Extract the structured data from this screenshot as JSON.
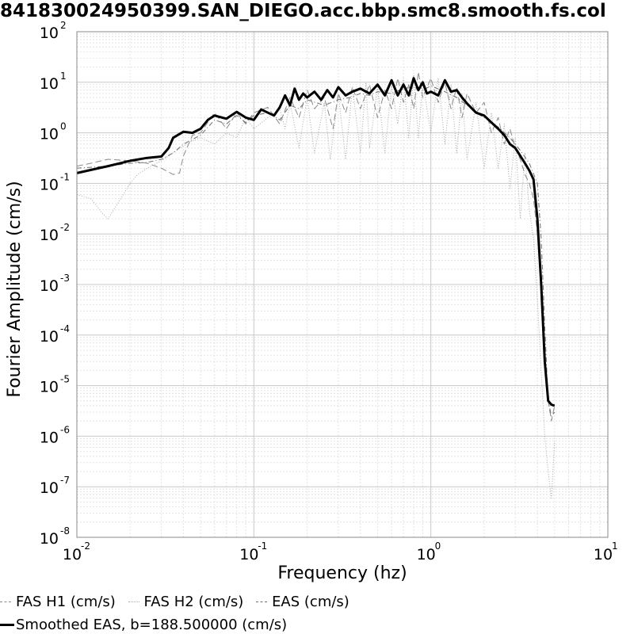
{
  "chart_data": {
    "type": "line",
    "title": "841830024950399.SAN_DIEGO.acc.bbp.smc8.smooth.fs.col",
    "xlabel": "Frequency (hz)",
    "ylabel": "Fourier Amplitude (cm/s)",
    "xscale": "log",
    "yscale": "log",
    "xlim": [
      0.01,
      10
    ],
    "ylim": [
      1e-08,
      100
    ],
    "grid": true,
    "legend_position": "bottom",
    "x_ticks": [
      {
        "base": "10",
        "exp": "-2",
        "value": 0.01
      },
      {
        "base": "10",
        "exp": "-1",
        "value": 0.1
      },
      {
        "base": "10",
        "exp": "0",
        "value": 1
      },
      {
        "base": "10",
        "exp": "1",
        "value": 10
      }
    ],
    "y_ticks": [
      {
        "base": "10",
        "exp": "2",
        "value": 100
      },
      {
        "base": "10",
        "exp": "1",
        "value": 10
      },
      {
        "base": "10",
        "exp": "0",
        "value": 1
      },
      {
        "base": "10",
        "exp": "-1",
        "value": 0.1
      },
      {
        "base": "10",
        "exp": "-2",
        "value": 0.01
      },
      {
        "base": "10",
        "exp": "-3",
        "value": 0.001
      },
      {
        "base": "10",
        "exp": "-4",
        "value": 0.0001
      },
      {
        "base": "10",
        "exp": "-5",
        "value": 1e-05
      },
      {
        "base": "10",
        "exp": "-6",
        "value": 1e-06
      },
      {
        "base": "10",
        "exp": "-7",
        "value": 1e-07
      },
      {
        "base": "10",
        "exp": "-8",
        "value": 1e-08
      }
    ],
    "series": [
      {
        "name": "FAS H1 (cm/s)",
        "color": "#8a8a8a",
        "dash": "8,4",
        "width": 1,
        "x": [
          0.01,
          0.012,
          0.015,
          0.02,
          0.025,
          0.03,
          0.035,
          0.038,
          0.04,
          0.045,
          0.05,
          0.06,
          0.07,
          0.08,
          0.09,
          0.1,
          0.12,
          0.14,
          0.16,
          0.18,
          0.2,
          0.22,
          0.25,
          0.28,
          0.3,
          0.33,
          0.36,
          0.4,
          0.45,
          0.5,
          0.55,
          0.6,
          0.65,
          0.7,
          0.75,
          0.8,
          0.85,
          0.9,
          1.0,
          1.1,
          1.2,
          1.3,
          1.4,
          1.5,
          1.6,
          1.8,
          2.0,
          2.2,
          2.4,
          2.6,
          2.8,
          3.0,
          3.2,
          3.4,
          3.6,
          3.8,
          4.0,
          4.2,
          4.4,
          4.6,
          4.8,
          5.0
        ],
        "y": [
          0.22,
          0.25,
          0.3,
          0.28,
          0.25,
          0.2,
          0.15,
          0.16,
          0.35,
          0.9,
          1.0,
          2.5,
          1.2,
          2.5,
          1.5,
          2.5,
          3.2,
          1.5,
          5.0,
          2.0,
          7.0,
          3.0,
          5.0,
          1.2,
          6.0,
          2.5,
          8.0,
          3.0,
          9.0,
          2.0,
          7.0,
          3.0,
          12.0,
          4.0,
          9.0,
          3.0,
          16.0,
          5.0,
          12.0,
          4.0,
          10.0,
          3.0,
          8.0,
          2.0,
          6.0,
          2.5,
          4.0,
          1.0,
          2.0,
          0.6,
          1.2,
          0.5,
          0.3,
          0.15,
          0.1,
          0.05,
          0.01,
          0.001,
          5e-05,
          5e-06,
          2e-06,
          4e-06
        ]
      },
      {
        "name": "FAS H2 (cm/s)",
        "color": "#a8a8a8",
        "dash": "1,2",
        "width": 1,
        "x": [
          0.01,
          0.012,
          0.014,
          0.015,
          0.017,
          0.02,
          0.022,
          0.025,
          0.03,
          0.035,
          0.04,
          0.045,
          0.05,
          0.06,
          0.07,
          0.08,
          0.09,
          0.1,
          0.12,
          0.14,
          0.15,
          0.16,
          0.18,
          0.2,
          0.22,
          0.25,
          0.27,
          0.3,
          0.33,
          0.36,
          0.4,
          0.43,
          0.45,
          0.5,
          0.55,
          0.6,
          0.65,
          0.7,
          0.75,
          0.8,
          0.85,
          0.9,
          1.0,
          1.1,
          1.2,
          1.3,
          1.4,
          1.5,
          1.6,
          1.8,
          2.0,
          2.2,
          2.4,
          2.6,
          2.8,
          3.0,
          3.2,
          3.4,
          3.6,
          3.8,
          4.0,
          4.2,
          4.4,
          4.6,
          4.8,
          5.0
        ],
        "y": [
          0.06,
          0.05,
          0.025,
          0.02,
          0.04,
          0.1,
          0.15,
          0.2,
          0.28,
          0.4,
          0.55,
          0.7,
          0.8,
          0.6,
          1.0,
          0.8,
          2.0,
          1.2,
          2.0,
          3.0,
          1.2,
          4.0,
          0.5,
          5.0,
          0.4,
          4.0,
          0.3,
          6.0,
          0.3,
          8.0,
          0.4,
          10.0,
          0.5,
          8.0,
          0.4,
          9.0,
          1.5,
          12.0,
          0.8,
          14.0,
          0.8,
          10.0,
          1.0,
          12.0,
          0.6,
          9.0,
          0.4,
          6.0,
          0.3,
          4.0,
          0.2,
          2.5,
          0.2,
          1.5,
          0.08,
          0.8,
          0.02,
          0.4,
          0.03,
          0.008,
          0.0005,
          2e-05,
          1e-06,
          2e-07,
          6e-08,
          8e-07
        ]
      },
      {
        "name": "EAS (cm/s)",
        "color": "#6e6e6e",
        "dash": "6,3,1,3",
        "width": 1,
        "x": [
          0.01,
          0.015,
          0.02,
          0.025,
          0.03,
          0.035,
          0.04,
          0.05,
          0.06,
          0.07,
          0.08,
          0.09,
          0.1,
          0.12,
          0.14,
          0.16,
          0.18,
          0.2,
          0.25,
          0.3,
          0.35,
          0.4,
          0.45,
          0.5,
          0.6,
          0.7,
          0.8,
          0.9,
          1.0,
          1.2,
          1.4,
          1.6,
          1.8,
          2.0,
          2.4,
          2.8,
          3.2,
          3.6,
          4.0,
          4.2,
          4.4,
          4.6,
          4.8,
          5.0
        ],
        "y": [
          0.2,
          0.22,
          0.25,
          0.26,
          0.3,
          0.4,
          0.6,
          0.9,
          1.8,
          1.5,
          2.2,
          1.6,
          2.2,
          2.5,
          1.8,
          3.5,
          3.0,
          4.5,
          3.5,
          4.5,
          5.0,
          6.0,
          5.5,
          6.5,
          6.0,
          7.5,
          8.0,
          7.0,
          8.5,
          6.5,
          5.0,
          3.5,
          2.5,
          2.0,
          1.3,
          0.8,
          0.45,
          0.25,
          0.1,
          0.008,
          0.00015,
          5e-06,
          2.5e-06,
          3e-06
        ]
      },
      {
        "name": "Smoothed EAS, b=188.500000 (cm/s)",
        "color": "#000000",
        "dash": "",
        "width": 3,
        "x": [
          0.01,
          0.015,
          0.02,
          0.025,
          0.03,
          0.033,
          0.035,
          0.04,
          0.045,
          0.05,
          0.055,
          0.06,
          0.07,
          0.08,
          0.09,
          0.1,
          0.11,
          0.12,
          0.13,
          0.14,
          0.15,
          0.16,
          0.17,
          0.18,
          0.19,
          0.2,
          0.22,
          0.24,
          0.26,
          0.28,
          0.3,
          0.33,
          0.36,
          0.4,
          0.45,
          0.5,
          0.55,
          0.6,
          0.65,
          0.7,
          0.75,
          0.8,
          0.85,
          0.9,
          0.95,
          1.0,
          1.1,
          1.2,
          1.3,
          1.4,
          1.5,
          1.6,
          1.8,
          2.0,
          2.2,
          2.4,
          2.6,
          2.8,
          3.0,
          3.2,
          3.4,
          3.6,
          3.8,
          4.0,
          4.2,
          4.4,
          4.6,
          4.8,
          5.0
        ],
        "y": [
          0.16,
          0.22,
          0.28,
          0.32,
          0.34,
          0.5,
          0.8,
          1.05,
          1.0,
          1.2,
          1.8,
          2.2,
          1.9,
          2.6,
          2.0,
          1.8,
          2.9,
          2.5,
          2.2,
          3.2,
          5.5,
          3.5,
          7.5,
          4.5,
          6.0,
          5.0,
          6.5,
          4.5,
          7.0,
          5.0,
          8.0,
          5.5,
          6.5,
          7.5,
          6.0,
          9.0,
          5.5,
          11.0,
          5.5,
          9.0,
          5.5,
          12.0,
          7.0,
          10.0,
          6.0,
          6.5,
          5.5,
          11.0,
          6.5,
          7.0,
          5.0,
          3.8,
          2.5,
          2.2,
          1.6,
          1.2,
          0.9,
          0.6,
          0.5,
          0.35,
          0.25,
          0.18,
          0.12,
          0.02,
          0.001,
          3e-05,
          5e-06,
          4.2e-06,
          4e-06
        ]
      }
    ]
  }
}
